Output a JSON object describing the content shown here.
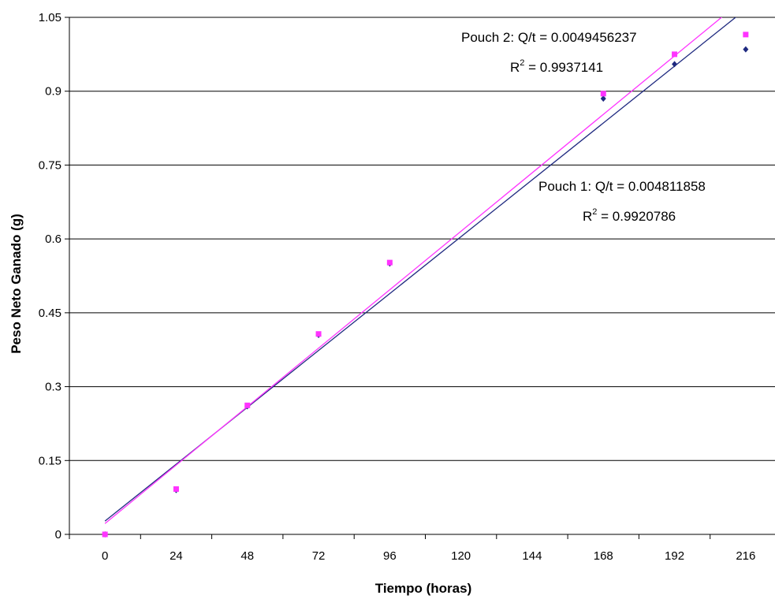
{
  "chart_data": {
    "type": "scatter",
    "xlabel": "Tiempo (horas)",
    "ylabel": "Peso Neto Ganado (g)",
    "x_ticks": [
      0,
      24,
      48,
      72,
      96,
      120,
      144,
      168,
      192,
      216
    ],
    "y_ticks": [
      "0",
      "0.15",
      "0.3",
      "0.45",
      "0.6",
      "0.75",
      "0.9",
      "1.05"
    ],
    "xlim": [
      -12,
      228
    ],
    "ylim": [
      0,
      1.05
    ],
    "grid": "horizontal",
    "series": [
      {
        "color": "#1f2a80",
        "marker": "diamond",
        "points": [
          [
            0,
            0
          ],
          [
            24,
            0.09
          ],
          [
            48,
            0.26
          ],
          [
            72,
            0.405
          ],
          [
            96,
            0.55
          ],
          [
            168,
            0.885
          ],
          [
            192,
            0.955
          ],
          [
            216,
            0.985
          ]
        ],
        "trend": {
          "slope": 0.004811858,
          "intercept": 0.027
        }
      },
      {
        "color": "#ff33ff",
        "marker": "square",
        "points": [
          [
            0,
            0
          ],
          [
            24,
            0.092
          ],
          [
            48,
            0.262
          ],
          [
            72,
            0.407
          ],
          [
            96,
            0.552
          ],
          [
            168,
            0.895
          ],
          [
            192,
            0.975
          ],
          [
            216,
            1.015
          ]
        ],
        "trend": {
          "slope": 0.0049456237,
          "intercept": 0.022
        }
      }
    ],
    "annotations": [
      {
        "id": "pouch2",
        "line1": "Pouch 2: Q/t = 0.0049456237",
        "r2_prefix": "R",
        "r2_sup": "2",
        "r2_value": " = 0.9937141"
      },
      {
        "id": "pouch1",
        "line1": "Pouch 1: Q/t = 0.004811858",
        "r2_prefix": "R",
        "r2_sup": "2",
        "r2_value": " = 0.9920786"
      }
    ]
  }
}
